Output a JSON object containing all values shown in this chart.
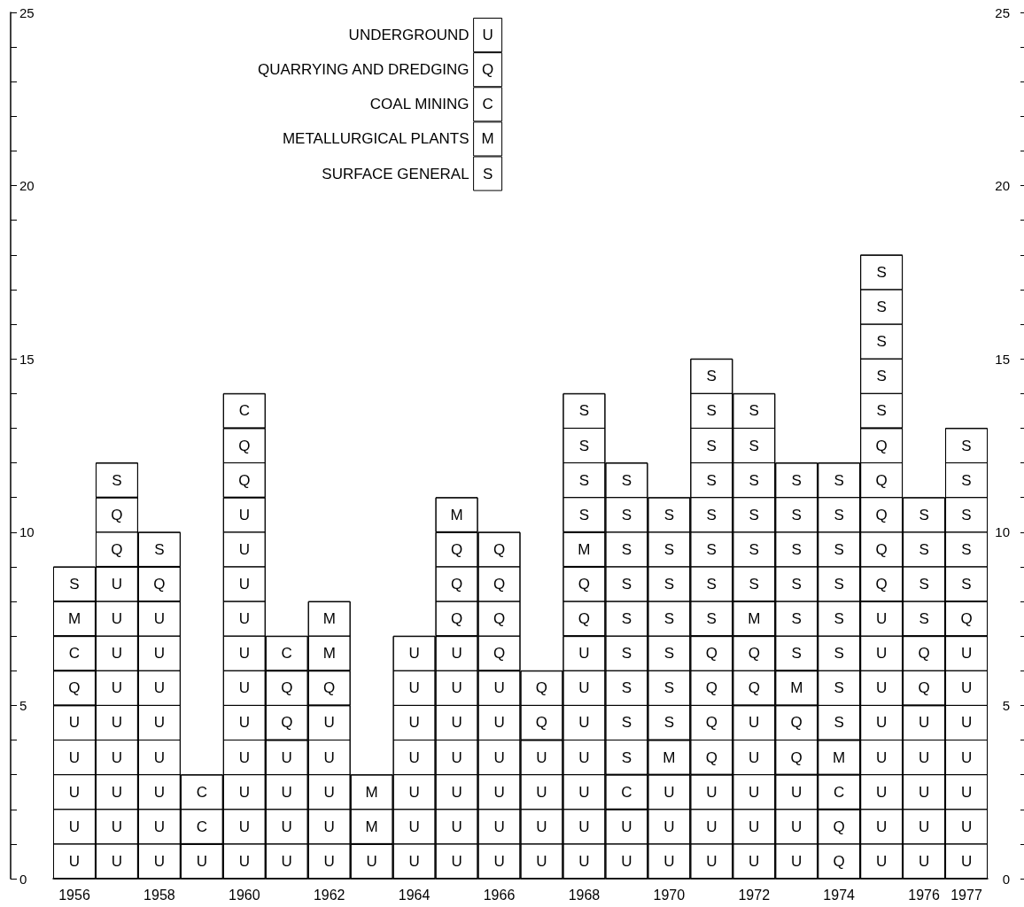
{
  "chart_data": {
    "type": "bar",
    "stacked": true,
    "legend": "top",
    "categories": [
      "1956",
      null,
      "1958",
      null,
      "1960",
      null,
      "1962",
      null,
      "1964",
      null,
      "1966",
      null,
      "1968",
      null,
      "1970",
      null,
      "1972",
      null,
      "1974",
      null,
      "1976",
      "1977"
    ],
    "series": [
      {
        "name": "UNDERGROUND",
        "color": "#ffffff",
        "values": [
          5,
          9,
          8,
          1,
          11,
          4,
          5,
          1,
          7,
          7,
          6,
          4,
          7,
          2,
          3,
          3,
          5,
          3,
          0,
          8,
          5,
          7
        ],
        "value_labels": [
          "U",
          "U",
          "U",
          "U",
          "U",
          "U",
          "U",
          "U",
          "U",
          "U",
          "U",
          "U",
          "U",
          "U",
          "U",
          "U",
          "U",
          "U",
          null,
          "U",
          "U",
          "U"
        ]
      },
      {
        "name": "QUARRYING AND DREDGING",
        "color": "#ffffff",
        "values": [
          1,
          2,
          1,
          0,
          2,
          2,
          1,
          0,
          0,
          3,
          4,
          2,
          2,
          0,
          0,
          4,
          2,
          2,
          2,
          5,
          2,
          1
        ],
        "value_labels": [
          "Q",
          "Q",
          "Q",
          null,
          "Q",
          "Q",
          "Q",
          null,
          null,
          "Q",
          "Q",
          "Q",
          "Q",
          null,
          null,
          "Q",
          "Q",
          "Q",
          "Q",
          "Q",
          "Q",
          "Q"
        ]
      },
      {
        "name": "COAL MINING",
        "color": "#ffffff",
        "values": [
          1,
          0,
          0,
          2,
          1,
          1,
          0,
          0,
          0,
          0,
          0,
          0,
          0,
          1,
          0,
          0,
          0,
          0,
          1,
          0,
          0,
          0
        ],
        "value_labels": [
          "C",
          null,
          null,
          "C",
          "C",
          "C",
          null,
          null,
          null,
          null,
          null,
          null,
          null,
          "C",
          null,
          null,
          null,
          null,
          "C",
          null,
          null,
          null
        ]
      },
      {
        "name": "METALLURGICAL PLANTS",
        "color": "#ffffff",
        "values": [
          1,
          0,
          0,
          0,
          0,
          0,
          2,
          2,
          0,
          1,
          0,
          0,
          1,
          0,
          1,
          0,
          1,
          1,
          1,
          0,
          0,
          0
        ],
        "value_labels": [
          "M",
          null,
          null,
          null,
          null,
          null,
          "M",
          "M",
          null,
          "M",
          null,
          null,
          "M",
          null,
          "M",
          null,
          "M",
          "M",
          "M",
          null,
          null,
          null
        ]
      },
      {
        "name": "SURFACE GENERAL",
        "color": "#ffffff",
        "values": [
          1,
          1,
          1,
          0,
          0,
          0,
          0,
          0,
          0,
          0,
          0,
          0,
          4,
          9,
          7,
          8,
          6,
          6,
          8,
          5,
          4,
          5
        ],
        "value_labels": [
          "S",
          "S",
          "S",
          null,
          null,
          null,
          null,
          null,
          null,
          null,
          null,
          null,
          "S",
          "S",
          "S",
          "S",
          "S",
          "S",
          "S",
          "S",
          "S",
          "S"
        ]
      }
    ],
    "ylim": [
      0,
      25
    ],
    "yticks": [
      0,
      5,
      10,
      15,
      20,
      25
    ],
    "y2lim": [
      0,
      25
    ],
    "y2ticks": [
      0,
      5,
      10,
      15,
      20,
      25
    ]
  }
}
